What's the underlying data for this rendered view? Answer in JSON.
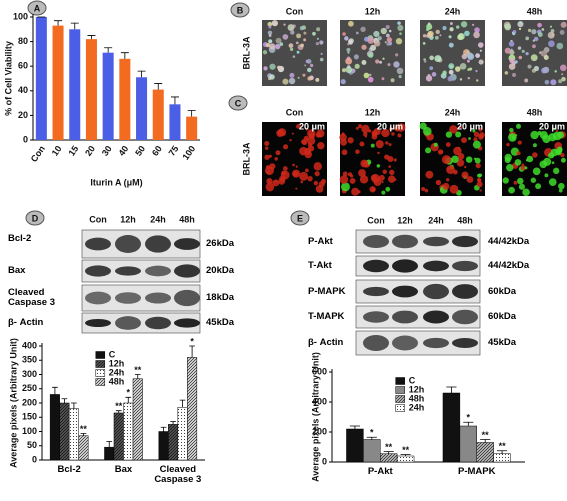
{
  "panel_labels": [
    "A",
    "B",
    "C",
    "D",
    "E"
  ],
  "micrographs": {
    "B": {
      "headers": [
        "Con",
        "12h",
        "24h",
        "48h"
      ],
      "row_label": "BRL-3A"
    },
    "C": {
      "headers": [
        "Con",
        "12h",
        "24h",
        "48h"
      ],
      "row_label": "BRL-3A",
      "scale": "20 μm"
    }
  },
  "blots": {
    "D": {
      "headers": [
        "Con",
        "12h",
        "24h",
        "48h"
      ],
      "rows": [
        {
          "label": "Bcl-2",
          "size": "26kDa"
        },
        {
          "label": "Bax",
          "size": "20kDa"
        },
        {
          "label": "Cleaved Caspase 3",
          "size": "18kDa"
        },
        {
          "label": "β- Actin",
          "size": "45kDa"
        }
      ]
    },
    "E": {
      "headers": [
        "Con",
        "12h",
        "24h",
        "48h"
      ],
      "rows": [
        {
          "label": "P-Akt",
          "size": "44/42kDa"
        },
        {
          "label": "T-Akt",
          "size": "44/42kDa"
        },
        {
          "label": "P-MAPK",
          "size": "60kDa"
        },
        {
          "label": "T-MAPK",
          "size": "60kDa"
        },
        {
          "label": "β- Actin",
          "size": "45kDa"
        }
      ]
    }
  },
  "chart_data": [
    {
      "type": "bar",
      "ylabel": "% of Cell Viability",
      "xlabel": "Iturin A (μM)",
      "categories": [
        "Con",
        "10",
        "15",
        "20",
        "30",
        "40",
        "50",
        "60",
        "75",
        "100"
      ],
      "values": [
        100,
        93,
        90,
        82,
        71,
        66,
        51,
        41,
        29,
        19
      ],
      "errors": [
        0,
        4,
        5,
        3,
        4,
        5,
        5,
        5,
        6,
        5
      ],
      "colors": [
        "#4b5ee6",
        "#f26b21",
        "#4b5ee6",
        "#f26b21",
        "#4b5ee6",
        "#f26b21",
        "#4b5ee6",
        "#f26b21",
        "#4b5ee6",
        "#f26b21"
      ],
      "ylim": [
        0,
        100
      ],
      "yticks": [
        0,
        20,
        40,
        60,
        80,
        100
      ]
    },
    {
      "type": "grouped_bar",
      "ylabel": "Average pixels (Arbitrary Unit)",
      "categories": [
        "Bcl-2",
        "Bax",
        "Cleaved Caspase 3"
      ],
      "series": [
        {
          "name": "C",
          "color": "#111111",
          "pattern": "solid",
          "values": [
            230,
            45,
            100
          ],
          "errors": [
            25,
            20,
            15
          ],
          "sig": [
            null,
            null,
            null
          ]
        },
        {
          "name": "12h",
          "color": "#555555",
          "pattern": "hatch",
          "values": [
            200,
            165,
            125
          ],
          "errors": [
            15,
            8,
            10
          ],
          "sig": [
            null,
            "**",
            null
          ]
        },
        {
          "name": "24h",
          "color": "#ffffff",
          "pattern": "dots",
          "values": [
            180,
            200,
            185
          ],
          "errors": [
            20,
            20,
            25
          ],
          "sig": [
            null,
            "*",
            null
          ]
        },
        {
          "name": "48h",
          "color": "#dddddd",
          "pattern": "hatch",
          "values": [
            85,
            285,
            360
          ],
          "errors": [
            8,
            15,
            40
          ],
          "sig": [
            "**",
            "**",
            "*"
          ]
        }
      ],
      "ylim": [
        0,
        400
      ],
      "yticks": [
        0,
        50,
        100,
        150,
        200,
        250,
        300,
        350,
        400
      ],
      "legend": "top"
    },
    {
      "type": "grouped_bar",
      "ylabel": "Average pixels (Arbitrary Unit)",
      "categories": [
        "P-Akt",
        "P-MAPK"
      ],
      "series": [
        {
          "name": "C",
          "color": "#111111",
          "pattern": "solid",
          "values": [
            220,
            460
          ],
          "errors": [
            20,
            40
          ],
          "sig": [
            null,
            null
          ]
        },
        {
          "name": "12h",
          "color": "#888888",
          "pattern": "solid",
          "values": [
            150,
            240
          ],
          "errors": [
            15,
            25
          ],
          "sig": [
            "*",
            "*"
          ]
        },
        {
          "name": "48h",
          "color": "#bbbbbb",
          "pattern": "hatch",
          "values": [
            55,
            130
          ],
          "errors": [
            15,
            20
          ],
          "sig": [
            "**",
            "**"
          ]
        },
        {
          "name": "24h",
          "color": "#ffffff",
          "pattern": "dots",
          "values": [
            40,
            55
          ],
          "errors": [
            10,
            20
          ],
          "sig": [
            "**",
            "**"
          ]
        }
      ],
      "ylim": [
        0,
        600
      ],
      "yticks": [
        0,
        200,
        400,
        600
      ],
      "legend": "top"
    }
  ]
}
